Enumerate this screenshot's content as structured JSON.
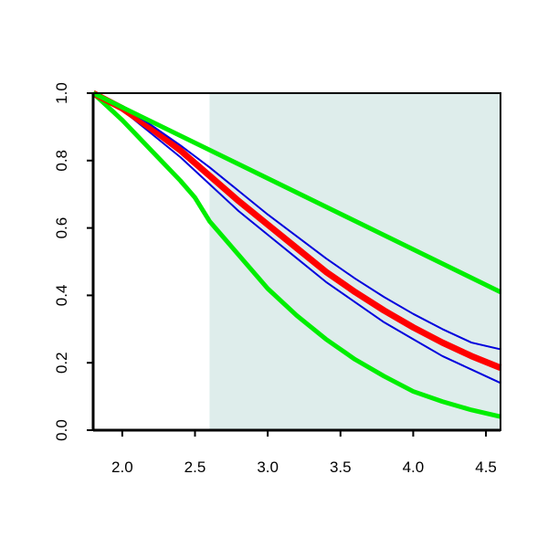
{
  "chart_data": {
    "type": "line",
    "title": "",
    "xlabel": "",
    "ylabel": "",
    "xlim": [
      1.8,
      4.6
    ],
    "ylim": [
      0.0,
      1.0
    ],
    "x_ticks": [
      {
        "value": 2.0,
        "label": "2.0"
      },
      {
        "value": 2.5,
        "label": "2.5"
      },
      {
        "value": 3.0,
        "label": "3.0"
      },
      {
        "value": 3.5,
        "label": "3.5"
      },
      {
        "value": 4.0,
        "label": "4.0"
      },
      {
        "value": 4.5,
        "label": "4.5"
      }
    ],
    "y_ticks": [
      {
        "value": 0.0,
        "label": "0.0"
      },
      {
        "value": 0.2,
        "label": "0.2"
      },
      {
        "value": 0.4,
        "label": "0.4"
      },
      {
        "value": 0.6,
        "label": "0.6"
      },
      {
        "value": 0.8,
        "label": "0.8"
      },
      {
        "value": 1.0,
        "label": "1.0"
      }
    ],
    "shaded_region": {
      "x_from": 2.6,
      "x_to": 4.6,
      "color": "#deedeb"
    },
    "grid": false,
    "legend": "none",
    "series": [
      {
        "key": "lower-outer",
        "color": "#00ee00",
        "x": [
          1.8,
          2.0,
          2.2,
          2.4,
          2.5,
          2.6,
          2.8,
          3.0,
          3.2,
          3.4,
          3.6,
          3.8,
          4.0,
          4.2,
          4.4,
          4.6
        ],
        "y": [
          1.0,
          0.92,
          0.83,
          0.74,
          0.69,
          0.62,
          0.52,
          0.42,
          0.34,
          0.27,
          0.21,
          0.16,
          0.115,
          0.085,
          0.06,
          0.04
        ]
      },
      {
        "key": "lower-inner",
        "color": "#0000dd",
        "x": [
          1.8,
          2.0,
          2.2,
          2.4,
          2.6,
          2.8,
          3.0,
          3.2,
          3.4,
          3.6,
          3.8,
          4.0,
          4.2,
          4.4,
          4.6
        ],
        "y": [
          1.0,
          0.95,
          0.88,
          0.81,
          0.73,
          0.65,
          0.58,
          0.51,
          0.44,
          0.38,
          0.32,
          0.27,
          0.22,
          0.18,
          0.14
        ]
      },
      {
        "key": "estimate",
        "color": "#ff0000",
        "x": [
          1.8,
          2.0,
          2.2,
          2.4,
          2.6,
          2.8,
          3.0,
          3.2,
          3.4,
          3.6,
          3.8,
          4.0,
          4.2,
          4.4,
          4.6
        ],
        "y": [
          1.0,
          0.955,
          0.895,
          0.83,
          0.755,
          0.68,
          0.61,
          0.54,
          0.47,
          0.41,
          0.355,
          0.305,
          0.26,
          0.22,
          0.185
        ]
      },
      {
        "key": "upper-inner",
        "color": "#0000dd",
        "x": [
          1.8,
          2.0,
          2.2,
          2.4,
          2.6,
          2.8,
          3.0,
          3.2,
          3.4,
          3.6,
          3.8,
          4.0,
          4.2,
          4.4,
          4.6
        ],
        "y": [
          1.0,
          0.96,
          0.905,
          0.845,
          0.78,
          0.71,
          0.64,
          0.575,
          0.51,
          0.45,
          0.395,
          0.345,
          0.3,
          0.26,
          0.24
        ]
      },
      {
        "key": "upper-outer",
        "color": "#00ee00",
        "x": [
          1.8,
          4.6
        ],
        "y": [
          1.0,
          0.41
        ]
      }
    ]
  }
}
